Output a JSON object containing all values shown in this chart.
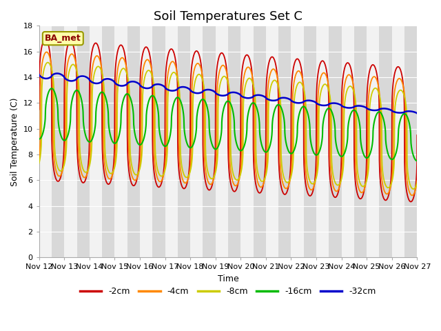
{
  "title": "Soil Temperatures Set C",
  "xlabel": "Time",
  "ylabel": "Soil Temperature (C)",
  "ylim": [
    0,
    18
  ],
  "series_labels": [
    "-2cm",
    "-4cm",
    "-8cm",
    "-16cm",
    "-32cm"
  ],
  "series_colors": [
    "#cc0000",
    "#ff8800",
    "#cccc00",
    "#00bb00",
    "#0000cc"
  ],
  "legend_label": "BA_met",
  "x_tick_labels": [
    "Nov 12",
    "Nov 13",
    "Nov 14",
    "Nov 15",
    "Nov 16",
    "Nov 17",
    "Nov 18",
    "Nov 19",
    "Nov 20",
    "Nov 21",
    "Nov 22",
    "Nov 23",
    "Nov 24",
    "Nov 25",
    "Nov 26",
    "Nov 27"
  ],
  "band_light": "#f2f2f2",
  "band_dark": "#d8d8d8",
  "grid_color": "#ffffff",
  "bg_color": "#ffffff",
  "title_fontsize": 13,
  "axis_fontsize": 9,
  "tick_fontsize": 8
}
